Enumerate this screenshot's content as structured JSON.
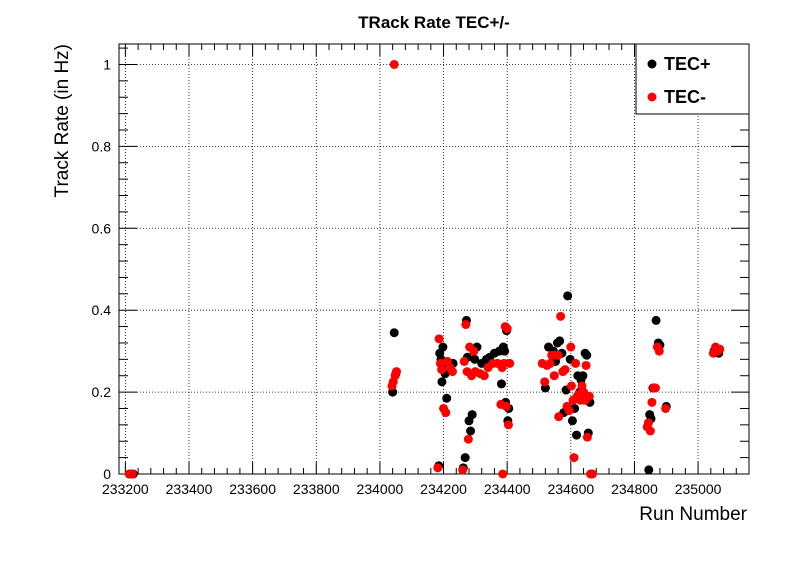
{
  "chart_data": {
    "type": "scatter",
    "title": "TRack Rate TEC+/-",
    "xlabel": "Run Number",
    "ylabel": "Track Rate (in Hz)",
    "xlim": [
      233180,
      235160
    ],
    "ylim": [
      0,
      1.05
    ],
    "x_ticks": [
      233200,
      233400,
      233600,
      233800,
      234000,
      234200,
      234400,
      234600,
      234800,
      235000
    ],
    "x_tick_labels": [
      "233200",
      "233400",
      "233600",
      "233800",
      "234000",
      "234200",
      "234400",
      "234600",
      "234800",
      "235000"
    ],
    "y_ticks": [
      0,
      0.2,
      0.4,
      0.6,
      0.8,
      1
    ],
    "y_tick_labels": [
      "0",
      "0.2",
      "0.4",
      "0.6",
      "0.8",
      "1"
    ],
    "grid": true,
    "legend_position": "top-right",
    "series": [
      {
        "name": "TEC+",
        "color": "#000000",
        "points": [
          [
            233215,
            0
          ],
          [
            233225,
            0
          ],
          [
            234040,
            0.2
          ],
          [
            234045,
            0.345
          ],
          [
            234050,
            0.245
          ],
          [
            234185,
            0.02
          ],
          [
            234188,
            0.295
          ],
          [
            234192,
            0.28
          ],
          [
            234195,
            0.225
          ],
          [
            234198,
            0.31
          ],
          [
            234205,
            0.245
          ],
          [
            234210,
            0.185
          ],
          [
            234215,
            0.265
          ],
          [
            234222,
            0.27
          ],
          [
            234230,
            0.27
          ],
          [
            234262,
            0.015
          ],
          [
            234268,
            0.04
          ],
          [
            234272,
            0.375
          ],
          [
            234275,
            0.285
          ],
          [
            234280,
            0.13
          ],
          [
            234285,
            0.105
          ],
          [
            234290,
            0.145
          ],
          [
            234298,
            0.28
          ],
          [
            234305,
            0.31
          ],
          [
            234320,
            0.27
          ],
          [
            234335,
            0.28
          ],
          [
            234345,
            0.285
          ],
          [
            234360,
            0.295
          ],
          [
            234375,
            0.3
          ],
          [
            234382,
            0.22
          ],
          [
            234388,
            0.31
          ],
          [
            234392,
            0.3
          ],
          [
            234395,
            0.175
          ],
          [
            234398,
            0.35
          ],
          [
            234402,
            0.13
          ],
          [
            234405,
            0.16
          ],
          [
            234520,
            0.21
          ],
          [
            234530,
            0.31
          ],
          [
            234545,
            0.3
          ],
          [
            234552,
            0.275
          ],
          [
            234558,
            0.32
          ],
          [
            234565,
            0.325
          ],
          [
            234572,
            0.295
          ],
          [
            234578,
            0.15
          ],
          [
            234585,
            0.205
          ],
          [
            234590,
            0.435
          ],
          [
            234598,
            0.28
          ],
          [
            234605,
            0.13
          ],
          [
            234612,
            0.16
          ],
          [
            234618,
            0.095
          ],
          [
            234622,
            0.24
          ],
          [
            234628,
            0.2
          ],
          [
            234632,
            0.23
          ],
          [
            234638,
            0.24
          ],
          [
            234645,
            0.295
          ],
          [
            234650,
            0.29
          ],
          [
            234655,
            0.1
          ],
          [
            234660,
            0.175
          ],
          [
            234665,
            0.0
          ],
          [
            234845,
            0.01
          ],
          [
            234848,
            0.145
          ],
          [
            234852,
            0.135
          ],
          [
            234858,
            0.21
          ],
          [
            234862,
            0.21
          ],
          [
            234868,
            0.375
          ],
          [
            234875,
            0.32
          ],
          [
            234880,
            0.315
          ],
          [
            234900,
            0.165
          ],
          [
            235050,
            0.3
          ],
          [
            235058,
            0.305
          ],
          [
            235065,
            0.295
          ]
        ]
      },
      {
        "name": "TEC-",
        "color": "#ff0000",
        "points": [
          [
            233212,
            0
          ],
          [
            233222,
            0
          ],
          [
            234045,
            1.0
          ],
          [
            234038,
            0.215
          ],
          [
            234042,
            0.225
          ],
          [
            234048,
            0.24
          ],
          [
            234052,
            0.25
          ],
          [
            234182,
            0.015
          ],
          [
            234186,
            0.33
          ],
          [
            234190,
            0.27
          ],
          [
            234194,
            0.255
          ],
          [
            234200,
            0.16
          ],
          [
            234207,
            0.15
          ],
          [
            234212,
            0.275
          ],
          [
            234220,
            0.26
          ],
          [
            234228,
            0.25
          ],
          [
            234260,
            0.01
          ],
          [
            234265,
            0.275
          ],
          [
            234270,
            0.365
          ],
          [
            234274,
            0.25
          ],
          [
            234278,
            0.085
          ],
          [
            234282,
            0.31
          ],
          [
            234288,
            0.24
          ],
          [
            234295,
            0.3
          ],
          [
            234300,
            0.25
          ],
          [
            234315,
            0.245
          ],
          [
            234328,
            0.24
          ],
          [
            234340,
            0.26
          ],
          [
            234355,
            0.27
          ],
          [
            234370,
            0.27
          ],
          [
            234380,
            0.17
          ],
          [
            234384,
            0.26
          ],
          [
            234386,
            0.0
          ],
          [
            234390,
            0.27
          ],
          [
            234394,
            0.36
          ],
          [
            234397,
            0.165
          ],
          [
            234400,
            0.355
          ],
          [
            234404,
            0.12
          ],
          [
            234408,
            0.27
          ],
          [
            234510,
            0.27
          ],
          [
            234518,
            0.225
          ],
          [
            234525,
            0.265
          ],
          [
            234535,
            0.27
          ],
          [
            234540,
            0.29
          ],
          [
            234548,
            0.24
          ],
          [
            234554,
            0.29
          ],
          [
            234560,
            0.29
          ],
          [
            234562,
            0.14
          ],
          [
            234568,
            0.385
          ],
          [
            234575,
            0.25
          ],
          [
            234582,
            0.255
          ],
          [
            234588,
            0.165
          ],
          [
            234595,
            0.155
          ],
          [
            234600,
            0.31
          ],
          [
            234602,
            0.215
          ],
          [
            234607,
            0.18
          ],
          [
            234610,
            0.04
          ],
          [
            234615,
            0.27
          ],
          [
            234620,
            0.19
          ],
          [
            234625,
            0.195
          ],
          [
            234630,
            0.18
          ],
          [
            234635,
            0.215
          ],
          [
            234640,
            0.2
          ],
          [
            234645,
            0.18
          ],
          [
            234648,
            0.265
          ],
          [
            234652,
            0.09
          ],
          [
            234658,
            0.19
          ],
          [
            234662,
            0.0
          ],
          [
            234668,
            0.0
          ],
          [
            234840,
            0.115
          ],
          [
            234844,
            0.125
          ],
          [
            234850,
            0.105
          ],
          [
            234855,
            0.175
          ],
          [
            234860,
            0.21
          ],
          [
            234866,
            0.21
          ],
          [
            234872,
            0.31
          ],
          [
            234878,
            0.3
          ],
          [
            234898,
            0.16
          ],
          [
            235048,
            0.295
          ],
          [
            235055,
            0.31
          ],
          [
            235062,
            0.3
          ],
          [
            235068,
            0.305
          ]
        ]
      }
    ]
  }
}
